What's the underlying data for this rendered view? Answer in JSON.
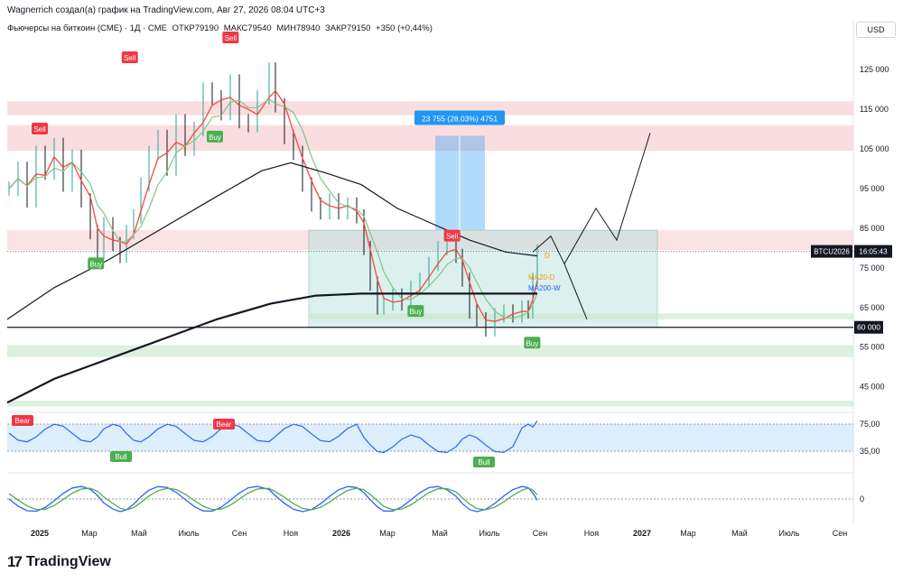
{
  "header": {
    "title": "Wagnerrich создал(а) график на TradingView.com, Авг 27, 2026 08:04 UTC+3"
  },
  "legend": {
    "symbol": "Фьючерсы на биткоин (CME) · 1Д · CME",
    "open": "ОТКР79190",
    "high": "МАКС79540",
    "low": "МИН78940",
    "close": "ЗАКР79150",
    "change": "+350 (+0,44%)"
  },
  "currency_button": "USD",
  "brand": "TradingView",
  "chart_data": {
    "type": "line",
    "title": "",
    "x_ticks": [
      "2025",
      "Мар",
      "Май",
      "Июль",
      "Сен",
      "Ноя",
      "2026",
      "Мар",
      "Май",
      "Июль",
      "Сен",
      "Ноя",
      "2027",
      "Мар",
      "Май",
      "Июль",
      "Сен"
    ],
    "y_ticks": [
      125000,
      115000,
      105000,
      95000,
      85000,
      75000,
      65000,
      55000,
      45000
    ],
    "y_tick_labels": [
      "125 000",
      "115 000",
      "105 000",
      "95 000",
      "85 000",
      "75 000",
      "65 000",
      "55 000",
      "45 000"
    ],
    "ylim": [
      39000,
      133000
    ],
    "price_label": {
      "symbol": "BTCU2026",
      "value": 79150,
      "time": "16:05:43"
    },
    "level_label": {
      "text": "60 000",
      "value": 60000
    },
    "measure": {
      "text": "23 755 (28,03%) 4751",
      "from": 84600,
      "to": 108300
    },
    "signals": [
      {
        "text": "Sell",
        "x": "2025-01-01",
        "price": 110000
      },
      {
        "text": "Sell",
        "x": "2025-04-20",
        "price": 128000
      },
      {
        "text": "Sell",
        "x": "2025-08-20",
        "price": 133000
      },
      {
        "text": "Buy",
        "x": "2025-03-10",
        "price": 76000
      },
      {
        "text": "Buy",
        "x": "2025-08-01",
        "price": 108000
      },
      {
        "text": "Buy",
        "x": "2026-04-01",
        "price": 64000
      },
      {
        "text": "Sell",
        "x": "2026-05-15",
        "price": 83000
      },
      {
        "text": "Buy",
        "x": "2026-08-20",
        "price": 56000
      }
    ],
    "ma_labels": [
      {
        "text": "MA20-D",
        "color": "#ff9800"
      },
      {
        "text": "MA200-W",
        "color": "#2962ff"
      },
      {
        "text": "D",
        "color": "#ff9800"
      }
    ],
    "rsi": {
      "y_ticks": [
        "75,00",
        "35,00"
      ],
      "labels": [
        "Bear",
        "Bear",
        "Bull",
        "Bull"
      ]
    },
    "macd": {
      "y_ticks": [
        "0"
      ]
    },
    "colors": {
      "up": "#26a69a",
      "down": "#131722",
      "sell": "#f23645",
      "buy": "#4caf50",
      "zone_red": "#f7c6cc",
      "zone_green": "#c8e6c9",
      "measure": "#2196f3",
      "rsi_line": "#2962ff"
    }
  }
}
